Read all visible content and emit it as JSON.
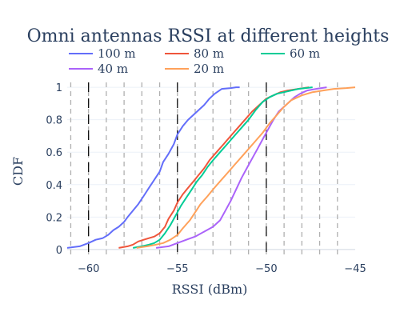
{
  "chart_data": {
    "type": "line",
    "title": "Omni antennas RSSI at different heights",
    "xlabel": "RSSI (dBm)",
    "ylabel": "CDF",
    "xlim": [
      -61.2,
      -45
    ],
    "ylim": [
      -0.03,
      1.03
    ],
    "x_ticks": [
      -60,
      -55,
      -50,
      -45
    ],
    "x_tick_labels": [
      "−60",
      "−55",
      "−50",
      "−45"
    ],
    "y_ticks": [
      0,
      0.2,
      0.4,
      0.6,
      0.8,
      1
    ],
    "y_tick_labels": [
      "0",
      "0.2",
      "0.4",
      "0.6",
      "0.8",
      "1"
    ],
    "grid": true,
    "legend_position": "top",
    "vertical_markers": {
      "gray_dashed": [
        -61,
        -60,
        -59,
        -58,
        -57,
        -56,
        -55,
        -54,
        -53,
        -52,
        -51,
        -50,
        -49,
        -48,
        -47,
        -46
      ],
      "black_dashed": [
        -60,
        -55,
        -50
      ]
    },
    "series": [
      {
        "name": "100 m",
        "color": "#636efa",
        "x": [
          -61.2,
          -60.5,
          -60.0,
          -59.6,
          -59.2,
          -58.9,
          -58.6,
          -58.3,
          -58.0,
          -57.8,
          -57.5,
          -57.2,
          -56.9,
          -56.6,
          -56.3,
          -56.0,
          -55.8,
          -55.5,
          -55.2,
          -55.0,
          -54.7,
          -54.4,
          -54.1,
          -53.8,
          -53.5,
          -53.2,
          -52.9,
          -52.5,
          -52.0,
          -51.7,
          -51.5
        ],
        "y": [
          0.01,
          0.02,
          0.04,
          0.06,
          0.07,
          0.09,
          0.12,
          0.14,
          0.17,
          0.2,
          0.24,
          0.28,
          0.33,
          0.38,
          0.43,
          0.48,
          0.54,
          0.59,
          0.65,
          0.71,
          0.76,
          0.8,
          0.83,
          0.86,
          0.89,
          0.93,
          0.96,
          0.99,
          0.995,
          1.0,
          1.0
        ]
      },
      {
        "name": "80 m",
        "color": "#ef553b",
        "x": [
          -58.3,
          -57.8,
          -57.5,
          -57.2,
          -56.9,
          -56.6,
          -56.3,
          -56.0,
          -55.7,
          -55.5,
          -55.2,
          -55.0,
          -54.7,
          -54.4,
          -54.1,
          -53.8,
          -53.5,
          -53.2,
          -52.8,
          -52.4,
          -52.0,
          -51.6,
          -51.2,
          -50.8,
          -50.4,
          -50.0,
          -49.6,
          -49.2,
          -48.8,
          -48.2,
          -47.6
        ],
        "y": [
          0.01,
          0.02,
          0.03,
          0.05,
          0.06,
          0.07,
          0.08,
          0.1,
          0.14,
          0.19,
          0.24,
          0.29,
          0.34,
          0.38,
          0.42,
          0.46,
          0.5,
          0.55,
          0.6,
          0.65,
          0.7,
          0.75,
          0.8,
          0.85,
          0.89,
          0.93,
          0.95,
          0.97,
          0.98,
          0.99,
          1.0
        ]
      },
      {
        "name": "60 m",
        "color": "#00cc96",
        "x": [
          -57.5,
          -57.0,
          -56.6,
          -56.3,
          -56.0,
          -55.7,
          -55.4,
          -55.1,
          -54.8,
          -54.5,
          -54.2,
          -53.9,
          -53.6,
          -53.3,
          -53.0,
          -52.6,
          -52.2,
          -51.8,
          -51.4,
          -51.0,
          -50.6,
          -50.2,
          -49.8,
          -49.4,
          -49.0,
          -48.6,
          -48.2,
          -47.8,
          -47.4
        ],
        "y": [
          0.01,
          0.02,
          0.03,
          0.04,
          0.06,
          0.1,
          0.15,
          0.21,
          0.27,
          0.32,
          0.37,
          0.42,
          0.46,
          0.51,
          0.55,
          0.6,
          0.65,
          0.7,
          0.75,
          0.8,
          0.86,
          0.91,
          0.94,
          0.96,
          0.97,
          0.98,
          0.99,
          0.995,
          1.0
        ]
      },
      {
        "name": "40 m",
        "color": "#ab63fa",
        "x": [
          -56.2,
          -55.5,
          -55.0,
          -54.5,
          -54.0,
          -53.5,
          -53.0,
          -52.6,
          -52.3,
          -52.0,
          -51.7,
          -51.4,
          -51.1,
          -50.8,
          -50.5,
          -50.2,
          -49.9,
          -49.6,
          -49.3,
          -49.0,
          -48.7,
          -48.4,
          -48.1,
          -47.7,
          -47.2,
          -46.6
        ],
        "y": [
          0.01,
          0.02,
          0.04,
          0.06,
          0.08,
          0.11,
          0.14,
          0.18,
          0.24,
          0.3,
          0.37,
          0.44,
          0.5,
          0.56,
          0.62,
          0.68,
          0.74,
          0.8,
          0.85,
          0.88,
          0.91,
          0.94,
          0.96,
          0.98,
          0.99,
          1.0
        ]
      },
      {
        "name": "20 m",
        "color": "#ffa15a",
        "x": [
          -57.3,
          -56.7,
          -56.2,
          -55.8,
          -55.4,
          -55.0,
          -54.7,
          -54.3,
          -54.0,
          -53.7,
          -53.3,
          -53.0,
          -52.6,
          -52.2,
          -51.8,
          -51.4,
          -51.0,
          -50.6,
          -50.2,
          -49.8,
          -49.4,
          -49.0,
          -48.6,
          -48.0,
          -47.4,
          -46.8,
          -46.2,
          -45.5,
          -45.0
        ],
        "y": [
          0.01,
          0.02,
          0.03,
          0.04,
          0.06,
          0.09,
          0.13,
          0.18,
          0.23,
          0.28,
          0.33,
          0.37,
          0.42,
          0.47,
          0.52,
          0.57,
          0.62,
          0.67,
          0.72,
          0.78,
          0.83,
          0.88,
          0.92,
          0.95,
          0.97,
          0.98,
          0.99,
          0.995,
          1.0
        ]
      }
    ]
  }
}
